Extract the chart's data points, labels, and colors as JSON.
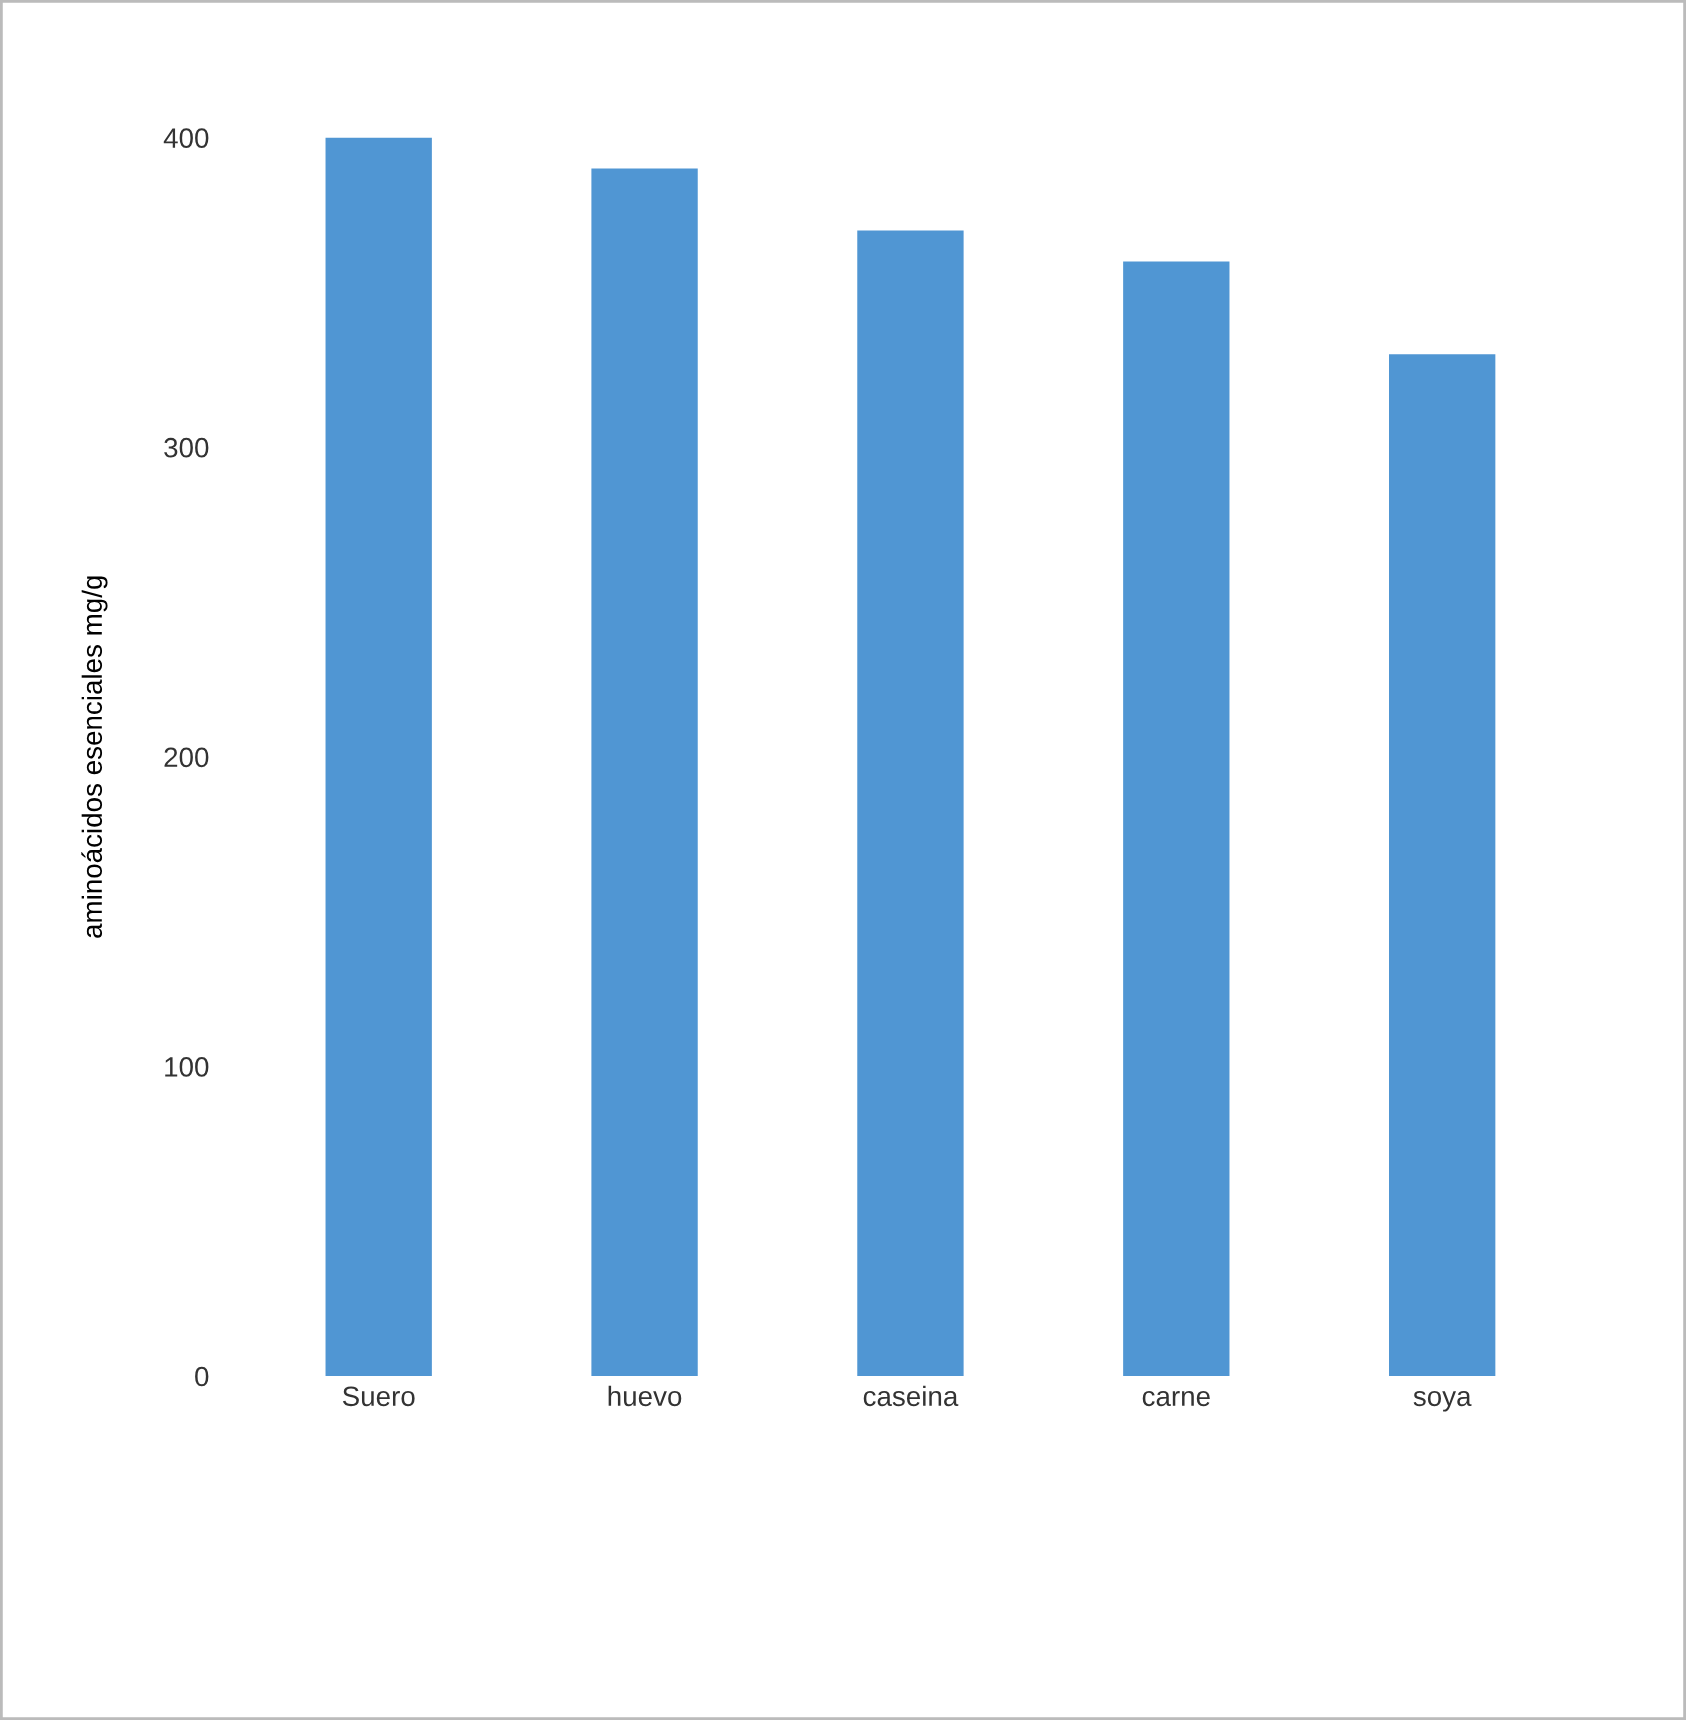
{
  "chart_data": {
    "type": "bar",
    "ylabel": "aminoácidos esenciales mg/g",
    "categories": [
      "Suero",
      "huevo",
      "caseina",
      "carne",
      "soya"
    ],
    "values": [
      400,
      390,
      370,
      360,
      330
    ],
    "color": "#5096d3",
    "ylim": [
      0,
      400
    ],
    "yticks": [
      0,
      100,
      200,
      300,
      400
    ],
    "grid": false
  }
}
